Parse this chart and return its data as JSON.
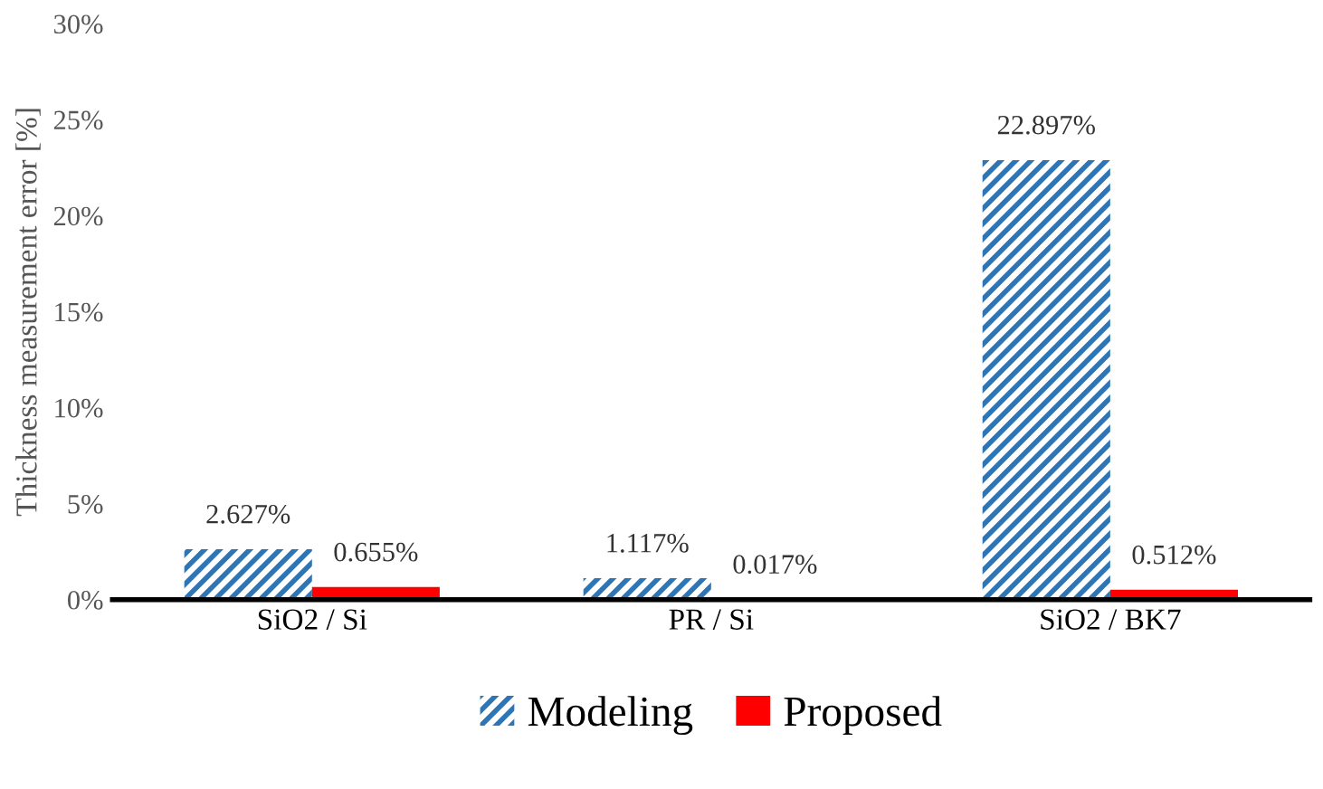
{
  "chart_data": {
    "type": "bar",
    "ylabel": "Thickness measurement error [%]",
    "categories": [
      "SiO2 / Si",
      "PR / Si",
      "SiO2 / BK7"
    ],
    "series": [
      {
        "name": "Modeling",
        "color": "#2e75b6",
        "values": [
          2.627,
          1.117,
          22.897
        ],
        "value_labels": [
          "2.627%",
          "1.117%",
          "22.897%"
        ]
      },
      {
        "name": "Proposed",
        "color": "#ff0000",
        "values": [
          0.655,
          0.017,
          0.512
        ],
        "value_labels": [
          "0.655%",
          "0.017%",
          "0.512%"
        ]
      }
    ],
    "ylim": [
      0,
      30
    ],
    "yticks": [
      {
        "value": 0,
        "label": "0%"
      },
      {
        "value": 5,
        "label": "5%"
      },
      {
        "value": 10,
        "label": "10%"
      },
      {
        "value": 15,
        "label": "15%"
      },
      {
        "value": 20,
        "label": "20%"
      },
      {
        "value": 25,
        "label": "25%"
      },
      {
        "value": 30,
        "label": "30%"
      }
    ],
    "grid": false,
    "legend": "bottom"
  }
}
